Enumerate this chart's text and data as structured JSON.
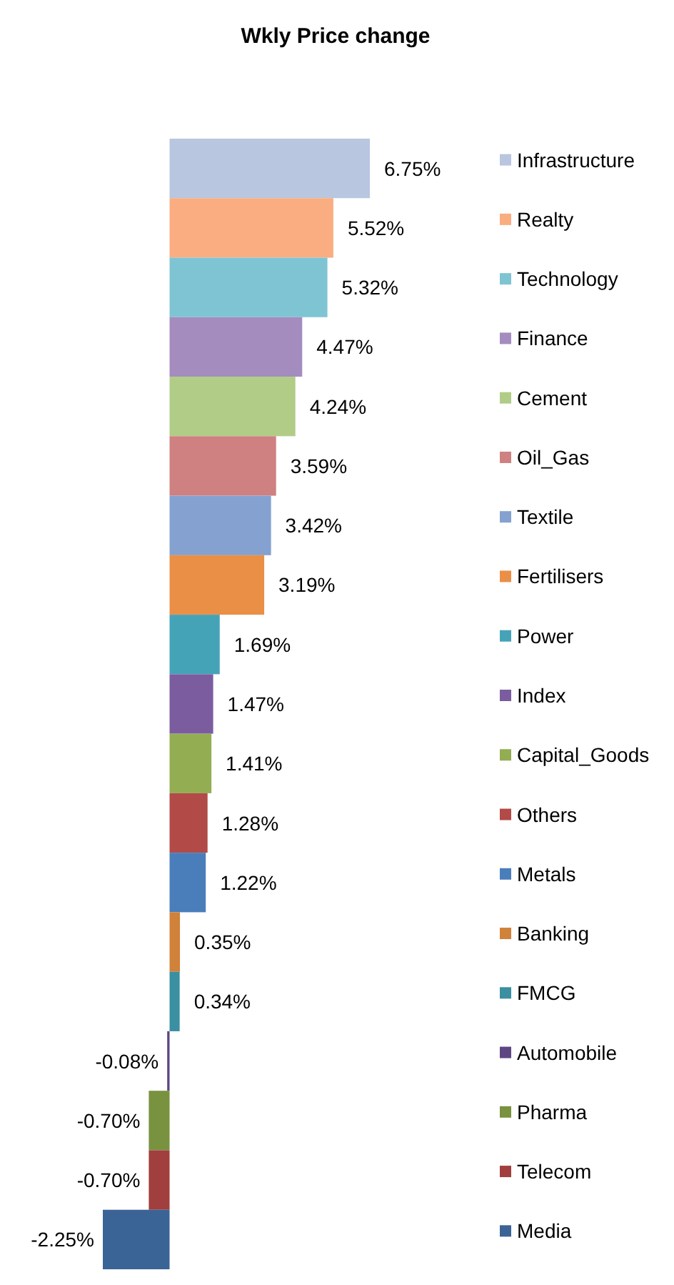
{
  "chart_data": {
    "type": "bar",
    "orientation": "horizontal",
    "title": "Wkly Price change",
    "categories": [
      "Infrastructure",
      "Realty",
      "Technology",
      "Finance",
      "Cement",
      "Oil_Gas",
      "Textile",
      "Fertilisers",
      "Power",
      "Index",
      "Capital_Goods",
      "Others",
      "Metals",
      "Banking",
      "FMCG",
      "Automobile",
      "Pharma",
      "Telecom",
      "Media"
    ],
    "values": [
      6.75,
      5.52,
      5.32,
      4.47,
      4.24,
      3.59,
      3.42,
      3.19,
      1.69,
      1.47,
      1.41,
      1.28,
      1.22,
      0.35,
      0.34,
      -0.08,
      -0.7,
      -0.7,
      -2.25
    ],
    "value_labels": [
      "6.75%",
      "5.52%",
      "5.32%",
      "4.47%",
      "4.24%",
      "3.59%",
      "3.42%",
      "3.19%",
      "1.69%",
      "1.47%",
      "1.41%",
      "1.28%",
      "1.22%",
      "0.35%",
      "0.34%",
      "-0.08%",
      "-0.70%",
      "-0.70%",
      "-2.25%"
    ],
    "colors": [
      "#b8c6e0",
      "#f9ad81",
      "#7fc4d3",
      "#a48cbf",
      "#b1cc87",
      "#cf8080",
      "#85a1cf",
      "#ea8f46",
      "#45a3b8",
      "#7b5c9f",
      "#93ad53",
      "#b24a47",
      "#4a7ebb",
      "#d0813a",
      "#3a8fa0",
      "#5e4683",
      "#79923f",
      "#a03f3d",
      "#3b6496"
    ]
  }
}
